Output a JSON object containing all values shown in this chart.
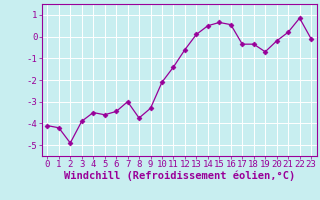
{
  "x": [
    0,
    1,
    2,
    3,
    4,
    5,
    6,
    7,
    8,
    9,
    10,
    11,
    12,
    13,
    14,
    15,
    16,
    17,
    18,
    19,
    20,
    21,
    22,
    23
  ],
  "y": [
    -4.1,
    -4.2,
    -4.9,
    -3.9,
    -3.5,
    -3.6,
    -3.45,
    -3.0,
    -3.75,
    -3.3,
    -2.1,
    -1.4,
    -0.6,
    0.1,
    0.5,
    0.65,
    0.55,
    -0.35,
    -0.35,
    -0.7,
    -0.2,
    0.2,
    0.85,
    -0.1
  ],
  "line_color": "#990099",
  "marker": "D",
  "marker_size": 2.5,
  "bg_color": "#c8eef0",
  "grid_color": "#ffffff",
  "xlabel": "Windchill (Refroidissement éolien,°C)",
  "xlabel_color": "#990099",
  "tick_color": "#990099",
  "ylim": [
    -5.5,
    1.5
  ],
  "xlim": [
    -0.5,
    23.5
  ],
  "yticks": [
    -5,
    -4,
    -3,
    -2,
    -1,
    0,
    1
  ],
  "xticks": [
    0,
    1,
    2,
    3,
    4,
    5,
    6,
    7,
    8,
    9,
    10,
    11,
    12,
    13,
    14,
    15,
    16,
    17,
    18,
    19,
    20,
    21,
    22,
    23
  ],
  "tick_fontsize": 6.5,
  "xlabel_fontsize": 7.5
}
